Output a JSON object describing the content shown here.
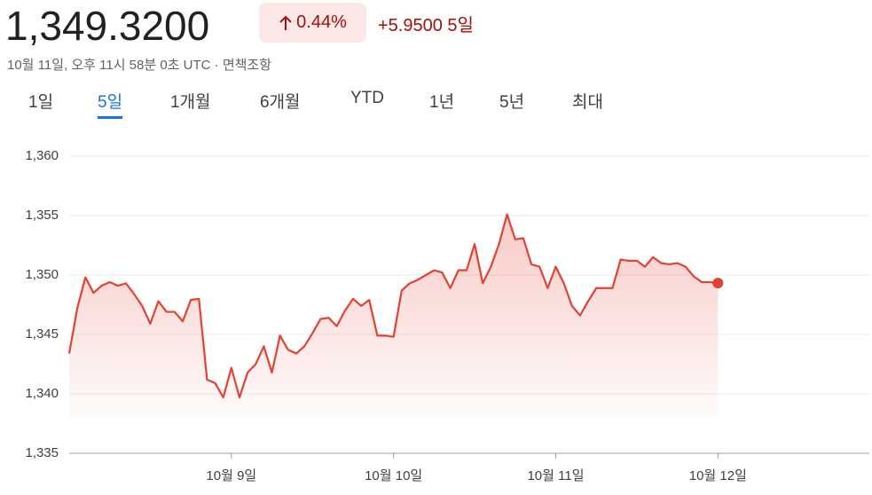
{
  "header": {
    "price": "1,349.3200",
    "change_percent": "0.44%",
    "change": "+5.9500",
    "period": "5일",
    "timestamp": "10월 11일, 오후 11시 58분 0초 UTC",
    "disclaimer": "면책조항"
  },
  "tabs": {
    "items": [
      "1일",
      "5일",
      "1개월",
      "6개월",
      "YTD",
      "1년",
      "5년",
      "최대"
    ],
    "selected": 1
  },
  "chart_data": {
    "type": "line",
    "categories": [
      null,
      null,
      null,
      null,
      null,
      null,
      null,
      null,
      null,
      null,
      null,
      null,
      null,
      null,
      null,
      null,
      null,
      null,
      null,
      null,
      "10월 9일",
      null,
      null,
      null,
      null,
      null,
      null,
      null,
      null,
      null,
      null,
      null,
      null,
      null,
      null,
      null,
      null,
      null,
      null,
      null,
      "10월 10일",
      null,
      null,
      null,
      null,
      null,
      null,
      null,
      null,
      null,
      null,
      null,
      null,
      null,
      null,
      null,
      null,
      null,
      null,
      null,
      "10월 11일",
      null,
      null,
      null,
      null,
      null,
      null,
      null,
      null,
      null,
      null,
      null,
      null,
      null,
      null,
      null,
      null,
      null,
      null,
      null,
      "10월 12일",
      null,
      null,
      null,
      null,
      null,
      null,
      null,
      null,
      null,
      null,
      null,
      null,
      null,
      null,
      null,
      null,
      null,
      null,
      null
    ],
    "values": [
      1343.4,
      1347.2,
      1349.8,
      1348.5,
      1349.1,
      1349.4,
      1349.1,
      1349.3,
      1348.4,
      1347.4,
      1345.9,
      1347.8,
      1346.9,
      1346.9,
      1346.1,
      1347.9,
      1348.0,
      1341.2,
      1340.9,
      1339.7,
      1342.2,
      1339.7,
      1341.8,
      1342.5,
      1344.0,
      1341.8,
      1344.9,
      1343.7,
      1343.4,
      1344.0,
      1345.1,
      1346.3,
      1346.4,
      1345.7,
      1347.0,
      1348.0,
      1347.4,
      1347.9,
      1344.9,
      1344.9,
      1344.8,
      1348.7,
      1349.3,
      1349.6,
      1350.0,
      1350.4,
      1350.2,
      1348.9,
      1350.4,
      1350.4,
      1352.6,
      1349.3,
      1350.7,
      1352.6,
      1355.1,
      1353.0,
      1353.1,
      1350.9,
      1350.7,
      1348.9,
      1350.7,
      1349.3,
      1347.4,
      1346.6,
      1347.8,
      1348.9,
      1348.9,
      1348.9,
      1351.3,
      1351.2,
      1351.2,
      1350.7,
      1351.5,
      1351.0,
      1350.9,
      1351.0,
      1350.7,
      1349.9,
      1349.4,
      1349.4,
      1349.32,
      null,
      null,
      null,
      null,
      null,
      null,
      null,
      null,
      null,
      null,
      null,
      null,
      null,
      null,
      null,
      null,
      null,
      null,
      null
    ],
    "color": "#e34133",
    "ylim": [
      1335,
      1360
    ],
    "yticks": [
      {
        "value": 1335,
        "label": "1,335"
      },
      {
        "value": 1340,
        "label": "1,340"
      },
      {
        "value": 1345,
        "label": "1,345"
      },
      {
        "value": 1350,
        "label": "1,350"
      },
      {
        "value": 1355,
        "label": "1,355"
      },
      {
        "value": 1360,
        "label": "1,360"
      }
    ],
    "grid": true
  }
}
